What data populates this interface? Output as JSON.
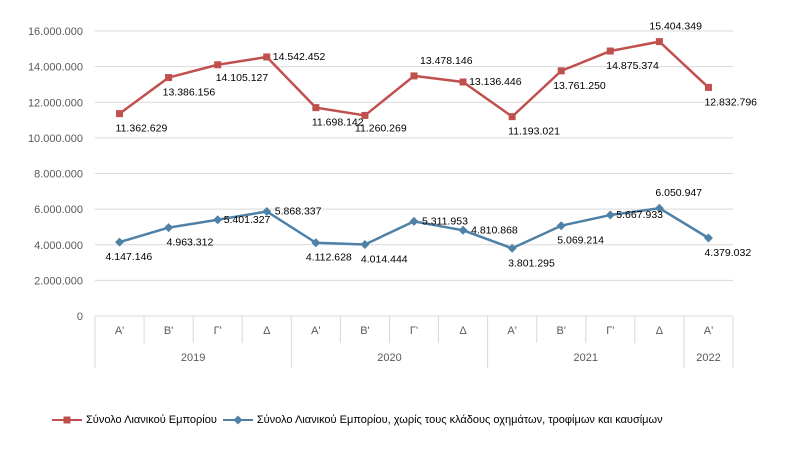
{
  "chart_data": {
    "type": "line",
    "ylim": [
      0,
      16000000
    ],
    "y_ticks": [
      "0",
      "2.000.000",
      "4.000.000",
      "6.000.000",
      "8.000.000",
      "10.000.000",
      "12.000.000",
      "14.000.000",
      "16.000.000"
    ],
    "categories": [
      "Α'",
      "Β'",
      "Γ'",
      "Δ",
      "Α'",
      "Β'",
      "Γ'",
      "Δ",
      "Α'",
      "Β'",
      "Γ'",
      "Δ",
      "Α'"
    ],
    "years": [
      {
        "label": "2019",
        "span": 4
      },
      {
        "label": "2020",
        "span": 4
      },
      {
        "label": "2021",
        "span": 4
      },
      {
        "label": "2022",
        "span": 1
      }
    ],
    "series": [
      {
        "name": "Σύνολο Λιανικού Εμπορίου",
        "color": "#c0504d",
        "marker": "square",
        "values": [
          11362629,
          13386156,
          14105127,
          14542452,
          11698142,
          11260269,
          13478146,
          13136446,
          11193021,
          13761250,
          14875374,
          15404349,
          12832796
        ],
        "labels": [
          "11.362.629",
          "13.386.156",
          "14.105.127",
          "14.542.452",
          "11.698.142",
          "11.260.269",
          "13.478.146",
          "13.136.446",
          "11.193.021",
          "13.761.250",
          "14.875.374",
          "15.404.349",
          "12.832.796"
        ]
      },
      {
        "name": "Σύνολο Λιανικού Εμπορίου, χωρίς τους κλάδους οχημάτων, τροφίμων και καυσίμων",
        "color": "#4f81a6",
        "marker": "diamond",
        "values": [
          4147146,
          4963312,
          5401327,
          5868337,
          4112628,
          4014444,
          5311953,
          4810868,
          3801295,
          5069214,
          5667933,
          6050947,
          4379032
        ],
        "labels": [
          "4.147.146",
          "4.963.312",
          "5.401.327",
          "5.868.337",
          "4.112.628",
          "4.014.444",
          "5.311.953",
          "4.810.868",
          "3.801.295",
          "5.069.214",
          "5.667.933",
          "6.050.947",
          "4.379.032"
        ]
      }
    ]
  }
}
